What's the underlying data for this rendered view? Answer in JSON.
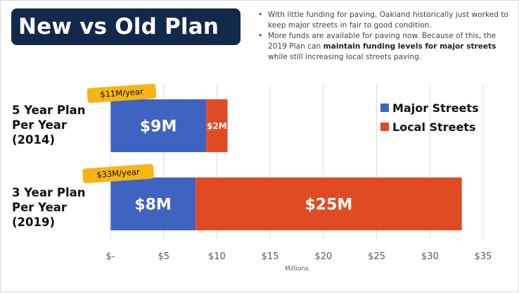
{
  "title": "New vs Old Plan",
  "bullets": [
    {
      "parts": [
        {
          "text": "With little funding for paving, Oakland historically just worked to keep major streets in fair to good condition.",
          "bold": false
        }
      ]
    },
    {
      "parts": [
        {
          "text": "More funds are available for paving now. Because of this, the 2019 Plan can ",
          "bold": false
        },
        {
          "text": "maintain funding levels for major streets",
          "bold": true
        },
        {
          "text": " while still increasing local streets paving.",
          "bold": false
        }
      ]
    }
  ],
  "colors": {
    "title_bg": "#13294b",
    "major": "#3e63c0",
    "local": "#e14b24",
    "tag": "#f5b517"
  },
  "chart_data": {
    "type": "bar",
    "orientation": "horizontal",
    "stacked": true,
    "categories": [
      {
        "lines": [
          "5 Year Plan",
          "Per Year",
          "(2014)"
        ],
        "total_label": "$11M/year"
      },
      {
        "lines": [
          "3 Year Plan",
          "Per Year",
          "(2019)"
        ],
        "total_label": "$33M/year"
      }
    ],
    "series": [
      {
        "name": "Major Streets",
        "values": [
          9,
          8
        ],
        "labels": [
          "$9M",
          "$8M"
        ]
      },
      {
        "name": "Local Streets",
        "values": [
          2,
          25
        ],
        "labels": [
          "$2M",
          "$25M"
        ]
      }
    ],
    "xlim": [
      0,
      35
    ],
    "xticks": [
      0,
      5,
      10,
      15,
      20,
      25,
      30,
      35
    ],
    "xtick_labels": [
      "$-",
      "$5",
      "$10",
      "$15",
      "$20",
      "$25",
      "$30",
      "$35"
    ],
    "xlabel": "Millions",
    "grid": true,
    "legend_position": "right"
  }
}
